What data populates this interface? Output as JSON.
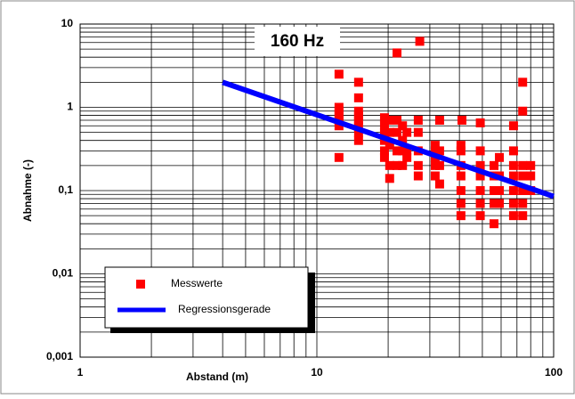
{
  "chart_data": {
    "type": "scatter",
    "title": "160 Hz",
    "x_label": "Abstand (m)",
    "y_label": "Abnahme (-)",
    "log_x": true,
    "log_y": true,
    "grid": true,
    "minor_grid": true,
    "legend": "lower left",
    "xlim": [
      1,
      100
    ],
    "xticks": [
      1,
      10,
      100
    ],
    "ylim": [
      0.001,
      10
    ],
    "yticks": [
      {
        "value": 0.001,
        "label": "0,001"
      },
      {
        "value": 0.01,
        "label": "0,01"
      },
      {
        "value": 0.1,
        "label": "0,1"
      },
      1,
      10
    ],
    "series": [
      {
        "name": "Messwerte",
        "color": "#ff0000",
        "marker": "square",
        "x": [
          12.4,
          12.4,
          12.4,
          12.4,
          12.4,
          12.4,
          12.4,
          15,
          15,
          15,
          15,
          15,
          15,
          15,
          15,
          19.3,
          19.3,
          19.3,
          19.3,
          19.3,
          19.3,
          20.3,
          20.3,
          20.3,
          20.3,
          20.3,
          21.8,
          21.8,
          21.8,
          21.8,
          21.8,
          23,
          23,
          23,
          23,
          24,
          24,
          24,
          26.8,
          26.8,
          26.8,
          26.8,
          26.8,
          27.2,
          31.6,
          31.6,
          31.6,
          31.6,
          31.6,
          33,
          33,
          33,
          33,
          40.6,
          40.6,
          40.6,
          40.6,
          40.6,
          40.6,
          40.6,
          41,
          49,
          49,
          49,
          49,
          49,
          49,
          49,
          56,
          56,
          56,
          56,
          56,
          59,
          59,
          59,
          59,
          67.7,
          67.7,
          67.7,
          67.7,
          67.7,
          67.7,
          67.7,
          74,
          74,
          74,
          74,
          74,
          74,
          74,
          80,
          80,
          80
        ],
        "values": [
          2.5,
          1.0,
          0.9,
          0.8,
          0.7,
          0.6,
          0.25,
          2.0,
          1.3,
          0.9,
          0.8,
          0.7,
          0.6,
          0.5,
          0.4,
          0.75,
          0.6,
          0.5,
          0.4,
          0.3,
          0.25,
          0.7,
          0.5,
          0.35,
          0.2,
          0.14,
          4.5,
          0.7,
          0.5,
          0.3,
          0.2,
          0.6,
          0.4,
          0.3,
          0.2,
          0.5,
          0.3,
          0.25,
          0.7,
          0.5,
          0.3,
          0.2,
          0.15,
          6.2,
          0.35,
          0.3,
          0.25,
          0.2,
          0.15,
          0.7,
          0.3,
          0.2,
          0.12,
          0.35,
          0.3,
          0.2,
          0.15,
          0.1,
          0.07,
          0.05,
          0.7,
          0.65,
          0.3,
          0.2,
          0.15,
          0.1,
          0.07,
          0.05,
          0.2,
          0.15,
          0.1,
          0.07,
          0.04,
          0.25,
          0.15,
          0.1,
          0.07,
          0.6,
          0.3,
          0.2,
          0.15,
          0.1,
          0.07,
          0.05,
          2.0,
          0.9,
          0.2,
          0.15,
          0.1,
          0.07,
          0.05,
          0.2,
          0.15,
          0.1
        ]
      },
      {
        "name": "Regressionsgerade",
        "color": "#0000ff",
        "marker": "line",
        "x": [
          4,
          100
        ],
        "values": [
          2,
          0.085
        ]
      }
    ]
  }
}
